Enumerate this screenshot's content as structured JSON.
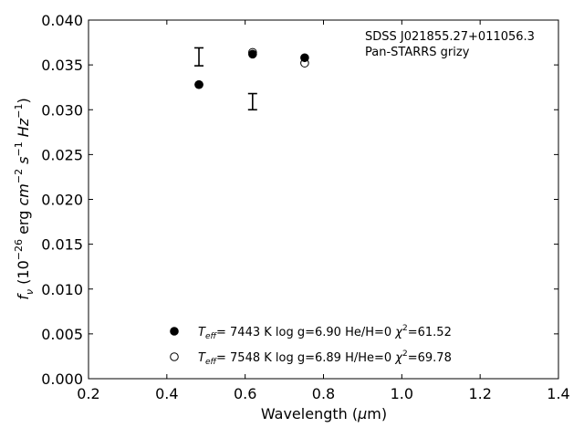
{
  "chart_data": {
    "type": "scatter",
    "title": "",
    "xlabel": {
      "pre": "Wavelength (",
      "mu": "μ",
      "post": "m)"
    },
    "ylabel": {
      "f": "f",
      "nu": "ν",
      "open": " (10",
      "exp1": "−26",
      "erg": " erg ",
      "cm": "cm",
      "exp2": "−2",
      "s": " s",
      "exp3": "−1",
      "hz": " Hz",
      "exp4": "−1",
      "close": ")"
    },
    "xlim": [
      0.2,
      1.4
    ],
    "ylim": [
      0.0,
      0.04
    ],
    "x_ticks": [
      0.2,
      0.4,
      0.6,
      0.8,
      1.0,
      1.2,
      1.4
    ],
    "x_tick_labels": [
      "0.2",
      "0.4",
      "0.6",
      "0.8",
      "1.0",
      "1.2",
      "1.4"
    ],
    "y_ticks": [
      0.0,
      0.005,
      0.01,
      0.015,
      0.02,
      0.025,
      0.03,
      0.035,
      0.04
    ],
    "y_tick_labels": [
      "0.000",
      "0.005",
      "0.010",
      "0.015",
      "0.020",
      "0.025",
      "0.030",
      "0.035",
      "0.040"
    ],
    "grid": false,
    "legend_position": "bottom-center",
    "annotation": {
      "line1": "SDSS J021855.27+011056.3",
      "line2": "Pan-STARRS grizy"
    },
    "observed": [
      {
        "x": 0.482,
        "y": 0.0359,
        "yerr": 0.001
      },
      {
        "x": 0.619,
        "y": 0.0309,
        "yerr": 0.0009
      }
    ],
    "series": [
      {
        "marker": "filled",
        "label": {
          "teff_sym": "T",
          "teff_sub": "eff",
          "text": "=  7443 K  log g=6.90  He/H=0  ",
          "chi": "χ",
          "chi_sup": "2",
          "chi_val": "=61.52"
        },
        "x": [
          0.482,
          0.619,
          0.752
        ],
        "y": [
          0.0328,
          0.0362,
          0.0358
        ]
      },
      {
        "marker": "open",
        "label": {
          "teff_sym": "T",
          "teff_sub": "eff",
          "text": "=  7548 K  log g=6.89  H/He=0  ",
          "chi": "χ",
          "chi_sup": "2",
          "chi_val": "=69.78"
        },
        "x": [
          0.482,
          0.619,
          0.752
        ],
        "y": [
          0.0328,
          0.0364,
          0.0352
        ]
      }
    ]
  }
}
